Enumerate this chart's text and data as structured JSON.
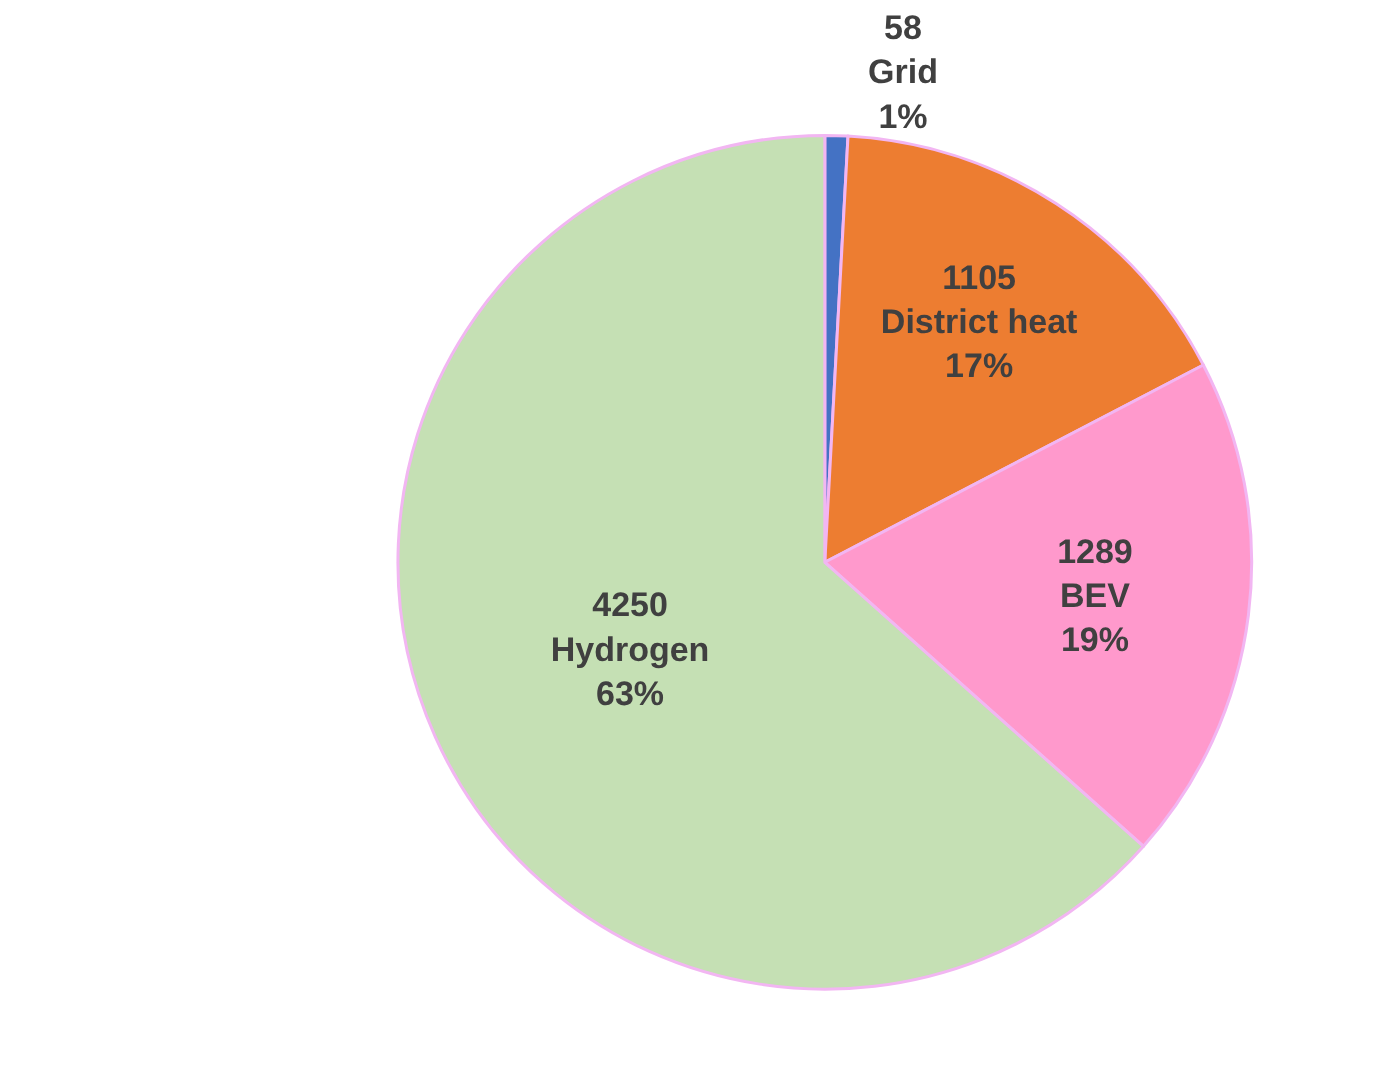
{
  "chart_data": {
    "type": "pie",
    "categories": [
      "Grid",
      "District heat",
      "BEV",
      "Hydrogen"
    ],
    "values": [
      58,
      1105,
      1289,
      4250
    ],
    "colors": [
      "#4472c4",
      "#ed7d31",
      "#ff99cc",
      "#c5e0b4"
    ],
    "annotations": [
      "1%",
      "17%",
      "19%",
      "63%"
    ],
    "data_labels": true,
    "legend": false
  }
}
